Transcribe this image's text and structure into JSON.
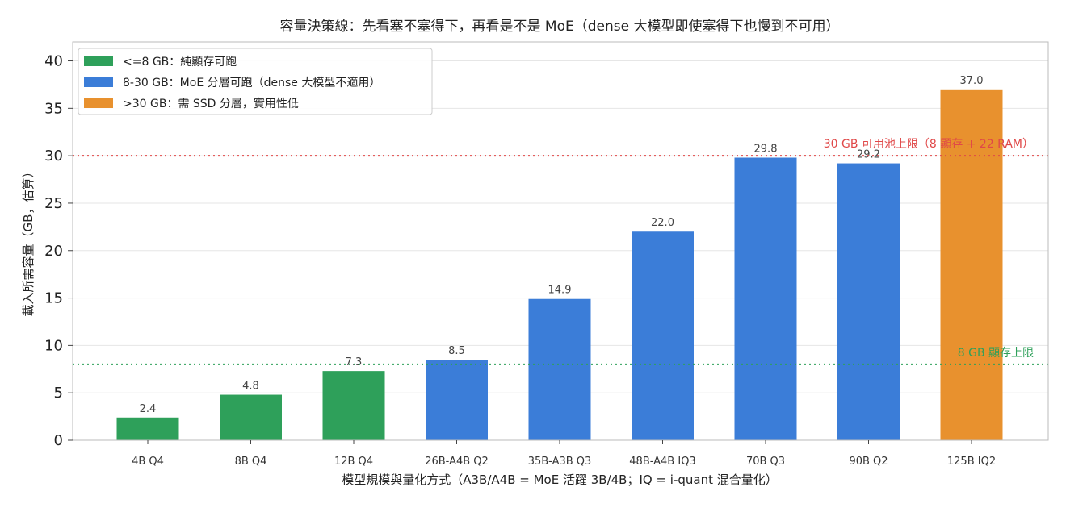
{
  "chart_data": {
    "type": "bar",
    "title": "容量決策線：先看塞不塞得下，再看是不是 MoE（dense 大模型即使塞得下也慢到不可用）",
    "xlabel": "模型規模與量化方式（A3B/A4B = MoE 活躍 3B/4B；IQ = i-quant 混合量化）",
    "ylabel": "載入所需容量（GB，估算）",
    "ylim": [
      0,
      42
    ],
    "yticks": [
      0,
      5,
      10,
      15,
      20,
      25,
      30,
      35,
      40
    ],
    "categories": [
      "4B Q4",
      "8B Q4",
      "12B Q4",
      "26B-A4B Q2",
      "35B-A3B Q3",
      "48B-A4B IQ3",
      "70B Q3",
      "90B Q2",
      "125B IQ2"
    ],
    "values": [
      2.4,
      4.8,
      7.3,
      8.5,
      14.9,
      22.0,
      29.8,
      29.2,
      37.0
    ],
    "value_labels": [
      "2.4",
      "4.8",
      "7.3",
      "8.5",
      "14.9",
      "22.0",
      "29.8",
      "29.2",
      "37.0"
    ],
    "bar_groups": [
      "green",
      "green",
      "green",
      "blue",
      "blue",
      "blue",
      "blue",
      "blue",
      "orange"
    ],
    "colors": {
      "green": "#2ea05a",
      "blue": "#3b7dd8",
      "orange": "#e8912e"
    },
    "legend": {
      "placement": "top-left",
      "items": [
        {
          "label": "<=8 GB：純顯存可跑",
          "color": "#2ea05a"
        },
        {
          "label": "8-30 GB：MoE 分層可跑（dense 大模型不適用）",
          "color": "#3b7dd8"
        },
        {
          "label": ">30 GB：需 SSD 分層，實用性低",
          "color": "#e8912e"
        }
      ]
    },
    "reference_lines": [
      {
        "y": 30,
        "label": "30 GB 可用池上限（8 顯存 + 22 RAM）",
        "color": "#e04848"
      },
      {
        "y": 8,
        "label": "8 GB 顯存上限",
        "color": "#2ea05a"
      }
    ],
    "grid": "y"
  }
}
